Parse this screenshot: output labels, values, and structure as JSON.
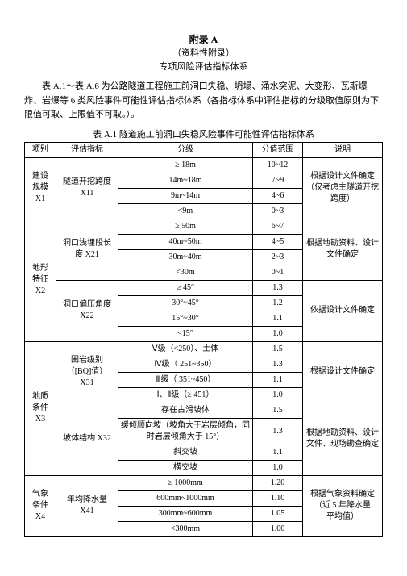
{
  "heading": {
    "line1": "附录 A",
    "line2": "（资料性附录）",
    "line3": "专项风险评估指标体系"
  },
  "intro": "表 A.1～表 A.6 为公路隧道工程施工前洞口失稳、坍塌、涌水突泥、大变形、瓦斯爆炸、岩爆等 6 类风险事件可能性评估指标体系（各指标体系中评估指标的分级取值原则为下限值可取、上限值不可取。）。",
  "table_caption": "表 A.1 隧道施工前洞口失稳风险事件可能性评估指标体系",
  "headers": {
    "c1": "项别",
    "c2": "评估指标",
    "c3": "分级",
    "c4": "分值范围",
    "c5": "说明"
  },
  "cat1": {
    "label": "建设\n规模\nX1",
    "ind": "隧道开挖跨度\nX11",
    "r1l": "≥ 18m",
    "r1v": "10~12",
    "r2l": "14m~18m",
    "r2v": "7~9",
    "r3l": "9m~14m",
    "r3v": "4~6",
    "r4l": "<9m",
    "r4v": "0~3",
    "desc": "根据设计文件确定（仅考虑主隧道开挖跨度）"
  },
  "cat2": {
    "label": "地形\n特征\nX2",
    "ind1": "洞口浅埋段长\n度 X21",
    "a1l": "≥ 50m",
    "a1v": "6~7",
    "a2l": "40m~50m",
    "a2v": "4~5",
    "a3l": "30m~40m",
    "a3v": "2~3",
    "a4l": "<30m",
    "a4v": "0~1",
    "desc1": "根据地勘资料、设计文件确定",
    "ind2": "洞口偏压角度\nX22",
    "b1l": "≥ 45°",
    "b1v": "1.3",
    "b2l": "30°~45°",
    "b2v": "1.2",
    "b3l": "15°~30°",
    "b3v": "1.1",
    "b4l": "<15°",
    "b4v": "1.0",
    "desc2": "依据设计文件确定"
  },
  "cat3": {
    "label": "地质\n条件\nX3",
    "ind1": "围岩级别\n（[BQ]值）\nX31",
    "c1l": "Ⅴ级（<250）、土体",
    "c1v": "1.5",
    "c2l": "Ⅳ级（ 251~350）",
    "c2v": "1.3",
    "c3l": "Ⅲ级（ 351~450）",
    "c3v": "1.1",
    "c4l": "Ⅰ、Ⅱ级（≥ 451）",
    "c4v": "1.0",
    "desc1": "根据设计文件确定",
    "ind2": "坡体结构 X32",
    "d1l": "存在古滑坡体",
    "d1v": "1.5",
    "d2l": "缓倾顺向坡（坡角大于岩层倾角，同时岩层倾角大于 15°）",
    "d2v": "1.3",
    "d3l": "斜交坡",
    "d3v": "1.1",
    "d4l": "横交坡",
    "d4v": "1.0",
    "desc2": "根据地勘资料、设计文件、现场勘查确定"
  },
  "cat4": {
    "label": "气象\n条件\nX4",
    "ind": "年均降水量\nX41",
    "e1l": "≥ 1000mm",
    "e1v": "1.20",
    "e2l": "600mm~1000mm",
    "e2v": "1.10",
    "e3l": "300mm~600mm",
    "e3v": "1.05",
    "e4l": "<300mm",
    "e4v": "1.00",
    "desc": "根据气象资料确定（近 5 年降水量\n平均值）"
  }
}
